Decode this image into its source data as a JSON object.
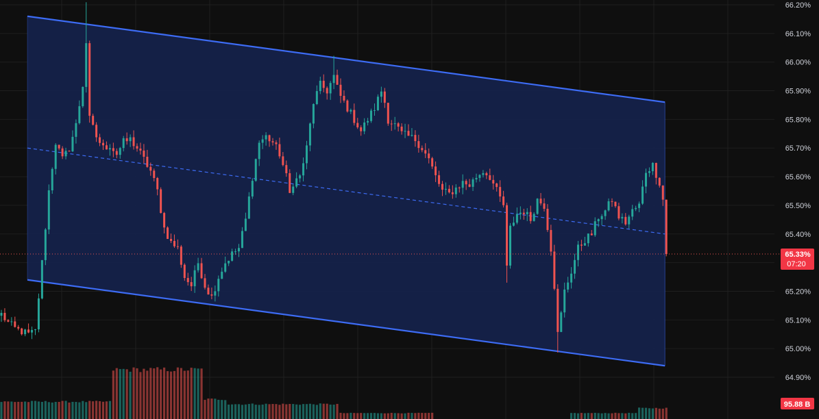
{
  "chart_data": {
    "type": "candlestick",
    "y_axis": {
      "ticks": [
        {
          "value": 66.2,
          "label": "66.20%"
        },
        {
          "value": 66.1,
          "label": "66.10%"
        },
        {
          "value": 66.0,
          "label": "66.00%"
        },
        {
          "value": 65.9,
          "label": "65.90%"
        },
        {
          "value": 65.8,
          "label": "65.80%"
        },
        {
          "value": 65.7,
          "label": "65.70%"
        },
        {
          "value": 65.6,
          "label": "65.60%"
        },
        {
          "value": 65.5,
          "label": "65.50%"
        },
        {
          "value": 65.4,
          "label": "65.40%"
        },
        {
          "value": 65.2,
          "label": "65.20%"
        },
        {
          "value": 65.1,
          "label": "65.10%"
        },
        {
          "value": 65.0,
          "label": "65.00%"
        },
        {
          "value": 64.9,
          "label": "64.90%"
        }
      ],
      "range": [
        64.83,
        66.21
      ]
    },
    "current_price": {
      "value": 65.33,
      "label": "65.33%",
      "countdown": "07:20"
    },
    "volume_badge": {
      "label": "95.88 B"
    },
    "close_path": [
      [
        0,
        65.12
      ],
      [
        2,
        65.09
      ],
      [
        4,
        65.07
      ],
      [
        6,
        65.06
      ],
      [
        8,
        65.05
      ],
      [
        10,
        65.06
      ],
      [
        12,
        65.3
      ],
      [
        14,
        65.55
      ],
      [
        16,
        65.72
      ],
      [
        18,
        65.66
      ],
      [
        20,
        65.7
      ],
      [
        22,
        65.78
      ],
      [
        24,
        65.92
      ],
      [
        25,
        66.07
      ],
      [
        26,
        65.8
      ],
      [
        28,
        65.74
      ],
      [
        30,
        65.7
      ],
      [
        32,
        65.71
      ],
      [
        34,
        65.68
      ],
      [
        36,
        65.72
      ],
      [
        38,
        65.73
      ],
      [
        40,
        65.7
      ],
      [
        42,
        65.66
      ],
      [
        44,
        65.62
      ],
      [
        46,
        65.55
      ],
      [
        48,
        65.42
      ],
      [
        50,
        65.37
      ],
      [
        52,
        65.35
      ],
      [
        54,
        65.25
      ],
      [
        56,
        65.22
      ],
      [
        58,
        65.3
      ],
      [
        60,
        65.22
      ],
      [
        62,
        65.18
      ],
      [
        64,
        65.25
      ],
      [
        66,
        65.3
      ],
      [
        68,
        65.33
      ],
      [
        70,
        65.35
      ],
      [
        72,
        65.45
      ],
      [
        74,
        65.6
      ],
      [
        76,
        65.72
      ],
      [
        78,
        65.74
      ],
      [
        80,
        65.72
      ],
      [
        82,
        65.68
      ],
      [
        84,
        65.6
      ],
      [
        85,
        65.54
      ],
      [
        86,
        65.58
      ],
      [
        88,
        65.6
      ],
      [
        90,
        65.7
      ],
      [
        92,
        65.86
      ],
      [
        94,
        65.92
      ],
      [
        96,
        65.9
      ],
      [
        98,
        65.95
      ],
      [
        99,
        65.91
      ],
      [
        100,
        65.88
      ],
      [
        102,
        65.84
      ],
      [
        104,
        65.8
      ],
      [
        106,
        65.76
      ],
      [
        108,
        65.8
      ],
      [
        110,
        65.84
      ],
      [
        112,
        65.9
      ],
      [
        113,
        65.86
      ],
      [
        114,
        65.8
      ],
      [
        116,
        65.78
      ],
      [
        118,
        65.75
      ],
      [
        120,
        65.74
      ],
      [
        122,
        65.73
      ],
      [
        124,
        65.7
      ],
      [
        126,
        65.66
      ],
      [
        128,
        65.6
      ],
      [
        130,
        65.55
      ],
      [
        132,
        65.54
      ],
      [
        134,
        65.56
      ],
      [
        136,
        65.58
      ],
      [
        138,
        65.57
      ],
      [
        140,
        65.6
      ],
      [
        142,
        65.62
      ],
      [
        144,
        65.6
      ],
      [
        146,
        65.55
      ],
      [
        148,
        65.5
      ],
      [
        149,
        65.28
      ],
      [
        150,
        65.42
      ],
      [
        152,
        65.47
      ],
      [
        154,
        65.48
      ],
      [
        156,
        65.45
      ],
      [
        158,
        65.52
      ],
      [
        160,
        65.5
      ],
      [
        162,
        65.35
      ],
      [
        163,
        65.22
      ],
      [
        164,
        65.05
      ],
      [
        165,
        65.12
      ],
      [
        166,
        65.2
      ],
      [
        168,
        65.27
      ],
      [
        170,
        65.35
      ],
      [
        172,
        65.38
      ],
      [
        174,
        65.4
      ],
      [
        176,
        65.46
      ],
      [
        178,
        65.48
      ],
      [
        180,
        65.52
      ],
      [
        182,
        65.46
      ],
      [
        184,
        65.44
      ],
      [
        186,
        65.48
      ],
      [
        188,
        65.5
      ],
      [
        190,
        65.62
      ],
      [
        192,
        65.64
      ],
      [
        194,
        65.58
      ],
      [
        195,
        65.52
      ],
      [
        196,
        65.33
      ]
    ],
    "channel": {
      "upper": {
        "start": [
          0,
          66.16
        ],
        "end": [
          196,
          65.86
        ]
      },
      "lower": {
        "start": [
          0,
          65.24
        ],
        "end": [
          196,
          64.94
        ]
      }
    },
    "volume_levels": [
      {
        "from": 0,
        "to": 33,
        "level": 0.35
      },
      {
        "from": 33,
        "to": 60,
        "level": 1.0
      },
      {
        "from": 60,
        "to": 67,
        "level": 0.4
      },
      {
        "from": 67,
        "to": 100,
        "level": 0.3
      },
      {
        "from": 100,
        "to": 128,
        "level": 0.12
      },
      {
        "from": 128,
        "to": 168,
        "level": 0.0
      },
      {
        "from": 168,
        "to": 188,
        "level": 0.12
      },
      {
        "from": 188,
        "to": 197,
        "level": 0.22
      }
    ]
  },
  "style": {
    "background": "#0f0f0f",
    "grid_color": "#1f1f1f",
    "channel_fill": "#15224a",
    "channel_line": "#3d6cf5",
    "up_color": "#26a69a",
    "down_color": "#ef5350",
    "badge_color": "#f23645",
    "text_color": "#d1d4dc"
  }
}
